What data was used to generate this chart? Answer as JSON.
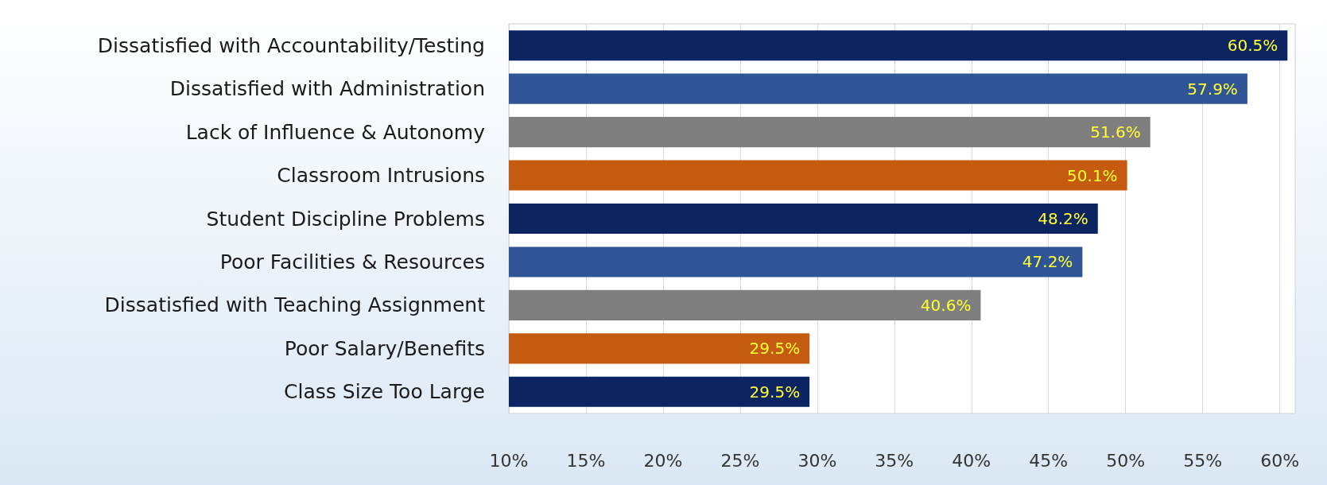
{
  "chart_data": {
    "type": "bar",
    "orientation": "horizontal",
    "categories": [
      "Dissatisfied with Accountability/Testing",
      "Dissatisfied with Administration",
      "Lack of Influence & Autonomy",
      "Classroom Intrusions",
      "Student Discipline Problems",
      "Poor Facilities & Resources",
      "Dissatisfied with Teaching Assignment",
      "Poor Salary/Benefits",
      "Class Size Too Large"
    ],
    "values": [
      60.5,
      57.9,
      51.6,
      50.1,
      48.2,
      47.2,
      40.6,
      29.5,
      29.5
    ],
    "value_labels": [
      "60.5%",
      "57.9%",
      "51.6%",
      "50.1%",
      "48.2%",
      "47.2%",
      "40.6%",
      "29.5%",
      "29.5%"
    ],
    "colors": [
      "#0c2461",
      "#2f5597",
      "#7f7f7f",
      "#c55a11",
      "#0c2461",
      "#2f5597",
      "#7f7f7f",
      "#c55a11",
      "#0c2461"
    ],
    "xlim": [
      10,
      61
    ],
    "xticks": [
      {
        "value": 10,
        "label": "10%"
      },
      {
        "value": 15,
        "label": "15%"
      },
      {
        "value": 20,
        "label": "20%"
      },
      {
        "value": 25,
        "label": "25%"
      },
      {
        "value": 30,
        "label": "30%"
      },
      {
        "value": 35,
        "label": "35%"
      },
      {
        "value": 40,
        "label": "40%"
      },
      {
        "value": 45,
        "label": "45%"
      },
      {
        "value": 50,
        "label": "50%"
      },
      {
        "value": 55,
        "label": "55%"
      },
      {
        "value": 60,
        "label": "60%"
      }
    ],
    "grid": "x"
  }
}
